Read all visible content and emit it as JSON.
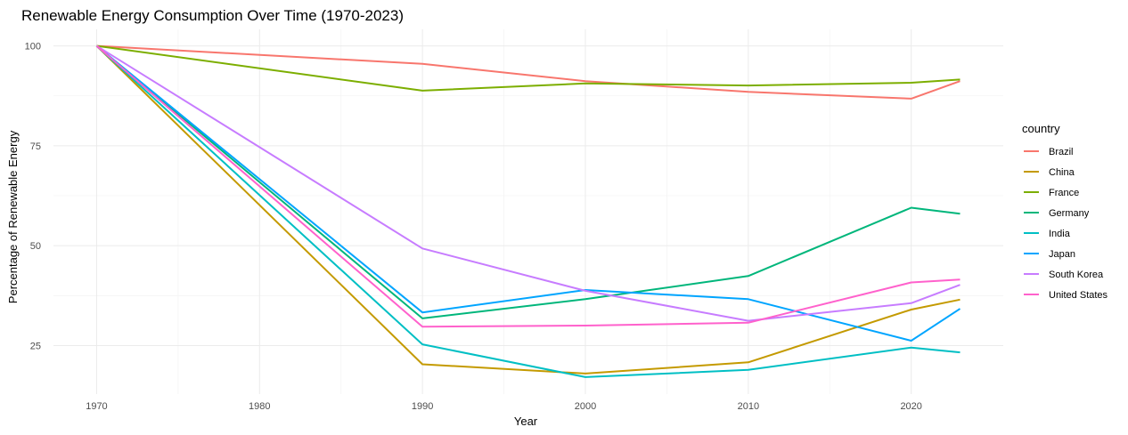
{
  "chart_data": {
    "type": "line",
    "title": "Renewable Energy Consumption Over Time (1970-2023)",
    "xlabel": "Year",
    "ylabel": "Percentage of Renewable Energy",
    "x": [
      1970,
      1990,
      2000,
      2010,
      2020,
      2023
    ],
    "xlim": [
      1970,
      2023
    ],
    "ylim": [
      17,
      100
    ],
    "xticks": [
      1970,
      1980,
      1990,
      2000,
      2010,
      2020
    ],
    "yticks": [
      25,
      50,
      75,
      100
    ],
    "grid": true,
    "legend": {
      "title": "country",
      "position": "right"
    },
    "series": [
      {
        "name": "Brazil",
        "color": "#F8766D",
        "values": [
          100,
          95.5,
          91.2,
          88.5,
          86.8,
          91.2
        ]
      },
      {
        "name": "China",
        "color": "#C49A00",
        "values": [
          100,
          20.3,
          18.0,
          20.8,
          34.0,
          36.5
        ]
      },
      {
        "name": "France",
        "color": "#7CAE00",
        "values": [
          100,
          88.8,
          90.6,
          90.1,
          90.8,
          91.6
        ]
      },
      {
        "name": "Germany",
        "color": "#00B67B",
        "values": [
          100,
          31.8,
          36.6,
          42.4,
          59.5,
          58.0
        ]
      },
      {
        "name": "India",
        "color": "#00BFC4",
        "values": [
          100,
          25.3,
          17.1,
          18.9,
          24.5,
          23.3
        ]
      },
      {
        "name": "Japan",
        "color": "#00A5FF",
        "values": [
          100,
          33.3,
          38.9,
          36.6,
          26.2,
          34.2
        ]
      },
      {
        "name": "South Korea",
        "color": "#C77CFF",
        "values": [
          100,
          49.3,
          38.7,
          31.2,
          35.6,
          40.2
        ]
      },
      {
        "name": "United States",
        "color": "#FF61CC",
        "values": [
          100,
          29.7,
          30.0,
          30.7,
          40.8,
          41.5
        ]
      }
    ]
  }
}
